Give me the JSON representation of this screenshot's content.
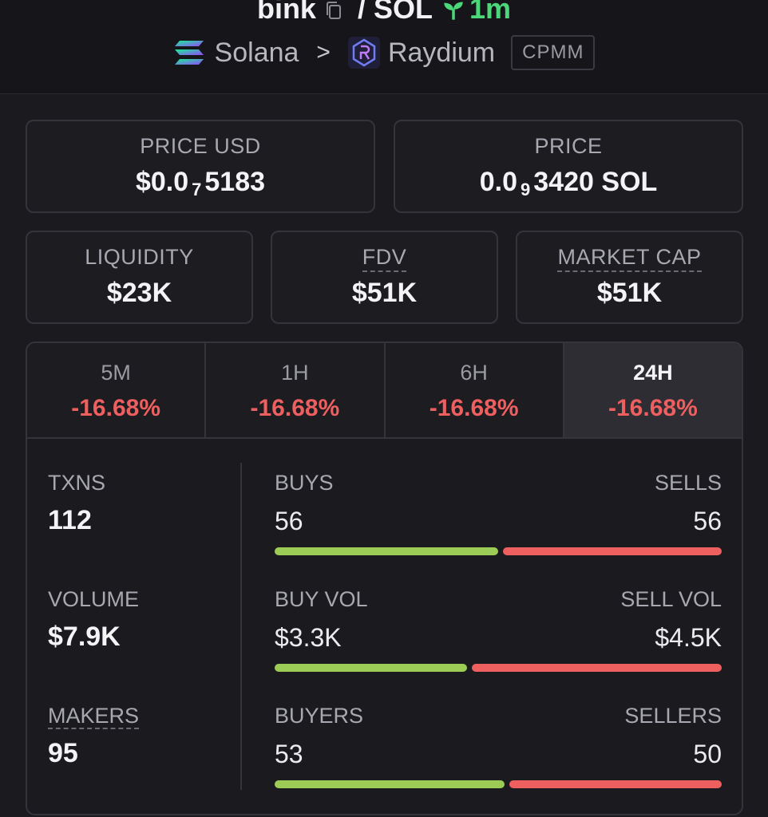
{
  "header": {
    "base_token": "bink",
    "separator": "/",
    "quote_token": "SOL",
    "age": "1m",
    "chain": "Solana",
    "dex": "Raydium",
    "pool_type": "CPMM"
  },
  "price_usd": {
    "label": "PRICE USD",
    "prefix": "$0.0",
    "zeros": "7",
    "digits": "5183"
  },
  "price_native": {
    "label": "PRICE",
    "prefix": "0.0",
    "zeros": "9",
    "digits": "3420 SOL"
  },
  "liquidity": {
    "label": "LIQUIDITY",
    "value": "$23K"
  },
  "fdv": {
    "label": "FDV",
    "value": "$51K"
  },
  "market_cap": {
    "label": "MARKET CAP",
    "value": "$51K"
  },
  "timeframes": [
    {
      "label": "5M",
      "change": "-16.68%"
    },
    {
      "label": "1H",
      "change": "-16.68%"
    },
    {
      "label": "6H",
      "change": "-16.68%"
    },
    {
      "label": "24H",
      "change": "-16.68%"
    }
  ],
  "stats": {
    "txns": {
      "label": "TXNS",
      "value": "112"
    },
    "volume": {
      "label": "VOLUME",
      "value": "$7.9K"
    },
    "makers": {
      "label": "MAKERS",
      "value": "95"
    },
    "buys": {
      "label": "BUYS",
      "value": "56",
      "buy_fraction": 0.5
    },
    "sells": {
      "label": "SELLS",
      "value": "56"
    },
    "buy_vol": {
      "label": "BUY VOL",
      "value": "$3.3K",
      "buy_fraction": 0.43
    },
    "sell_vol": {
      "label": "SELL VOL",
      "value": "$4.5K"
    },
    "buyers": {
      "label": "BUYERS",
      "value": "53",
      "buy_fraction": 0.515
    },
    "sellers": {
      "label": "SELLERS",
      "value": "50"
    }
  },
  "colors": {
    "positive": "#9ccc55",
    "negative": "#ee5f5f",
    "age": "#4cd87a"
  }
}
